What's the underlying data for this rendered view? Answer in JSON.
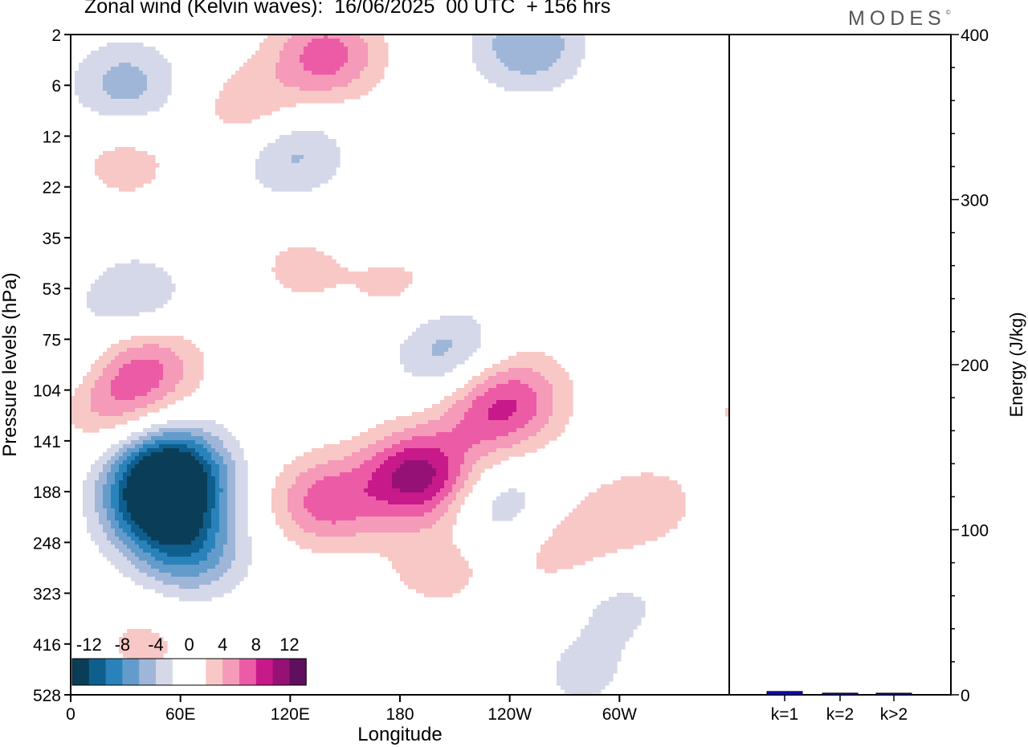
{
  "title": "Zonal wind (Kelvin waves):  16/06/2025  00 UTC  + 156 hrs",
  "logo": "MODES",
  "colors": {
    "neg": [
      "#0a3e58",
      "#0f5f8e",
      "#2a82bb",
      "#639ccb",
      "#9fb6d8",
      "#d5d8e8"
    ],
    "pos": [
      "#f8c8c6",
      "#f59ab8",
      "#ec5ca6",
      "#c8198b",
      "#961176",
      "#5e0f5e"
    ],
    "bar": "#0a0acc"
  },
  "chart_data": [
    {
      "type": "heatmap",
      "title": "Zonal wind (Kelvin waves):  16/06/2025  00 UTC  + 156 hrs",
      "xlabel": "Longitude",
      "ylabel": "Pressure levels (hPa)",
      "x_ticks": [
        "0",
        "60E",
        "120E",
        "180",
        "120W",
        "60W"
      ],
      "y_ticks": [
        "2",
        "6",
        "12",
        "22",
        "35",
        "53",
        "75",
        "104",
        "141",
        "188",
        "248",
        "323",
        "416",
        "528"
      ],
      "colorbar_labels": [
        "-12",
        "-8",
        "-4",
        "0",
        "4",
        "8",
        "12"
      ],
      "levels": [
        -12,
        -10,
        -8,
        -6,
        -4,
        -2,
        0,
        2,
        4,
        6,
        8,
        10,
        12
      ],
      "features": [
        {
          "lon": 55,
          "level": 8.6,
          "value": -13
        },
        {
          "lon": 48,
          "level": 9.3,
          "value": -11
        },
        {
          "lon": 65,
          "level": 10.2,
          "value": -7
        },
        {
          "lon": 42,
          "level": 6.5,
          "value": 6
        },
        {
          "lon": 20,
          "level": 7.2,
          "value": 5
        },
        {
          "lon": 190,
          "level": 8.7,
          "value": 11
        },
        {
          "lon": 140,
          "level": 9.2,
          "value": 7
        },
        {
          "lon": 230,
          "level": 7.5,
          "value": 6
        },
        {
          "lon": 246,
          "level": 7.0,
          "value": 4
        },
        {
          "lon": 200,
          "level": 10.5,
          "value": 3
        },
        {
          "lon": 120,
          "level": 2.3,
          "value": -5
        },
        {
          "lon": 205,
          "level": 6.2,
          "value": -5
        },
        {
          "lon": 235,
          "level": 9.3,
          "value": -4
        },
        {
          "lon": 30,
          "level": 1.0,
          "value": -5
        },
        {
          "lon": 250,
          "level": 0.2,
          "value": -6
        },
        {
          "lon": 140,
          "level": 0.4,
          "value": 7
        },
        {
          "lon": 100,
          "level": 1.5,
          "value": 4
        },
        {
          "lon": 30,
          "level": 2.5,
          "value": 3
        },
        {
          "lon": 35,
          "level": 5.2,
          "value": -4
        },
        {
          "lon": 125,
          "level": 4.6,
          "value": 2.5
        },
        {
          "lon": 180,
          "level": 5.0,
          "value": 2.5
        },
        {
          "lon": 320,
          "level": 9.2,
          "value": 2.5
        },
        {
          "lon": 290,
          "level": 9.7,
          "value": 2.5
        },
        {
          "lon": 260,
          "level": 10.2,
          "value": 2.5
        },
        {
          "lon": 300,
          "level": 11.2,
          "value": -2.5
        },
        {
          "lon": 280,
          "level": 12.6,
          "value": -2.5
        },
        {
          "lon": 40,
          "level": 12.0,
          "value": 2.5
        },
        {
          "lon": 360,
          "level": 6.5,
          "value": -3
        }
      ]
    },
    {
      "type": "bar",
      "categories": [
        "k=1",
        "k=2",
        "k>2"
      ],
      "values": [
        2,
        1,
        0.5
      ],
      "ylabel": "Energy (J/kg)",
      "ylim": [
        0,
        400
      ],
      "y_ticks": [
        "0",
        "100",
        "200",
        "300",
        "400"
      ]
    }
  ]
}
